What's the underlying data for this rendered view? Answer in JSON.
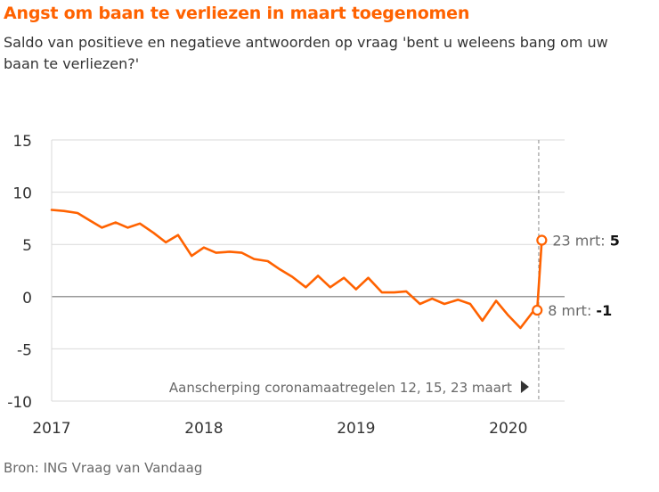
{
  "title": "Angst om baan te verliezen in maart toegenomen",
  "subtitle": "Saldo van positieve en negatieve antwoorden op vraag 'bent u weleens bang om uw baan te verliezen?'",
  "source": "Bron: ING Vraag van Vandaag",
  "colors": {
    "accent": "#ff6200",
    "text": "#333333",
    "muted": "#696969",
    "grid": "#d9d9d9"
  },
  "chart_data": {
    "type": "line",
    "title": "Angst om baan te verliezen in maart toegenomen",
    "xlabel": "",
    "ylabel": "",
    "ylim": [
      -10,
      15
    ],
    "yticks": [
      15,
      10,
      5,
      0,
      -5,
      -10
    ],
    "xlim": [
      2017.0,
      2020.37
    ],
    "xticks": [
      {
        "value": 2017,
        "label": "2017"
      },
      {
        "value": 2018,
        "label": "2018"
      },
      {
        "value": 2019,
        "label": "2019"
      },
      {
        "value": 2020,
        "label": "2020"
      }
    ],
    "grid": "horizontal",
    "series": [
      {
        "x": [
          2017.0,
          2017.08,
          2017.17,
          2017.25,
          2017.33,
          2017.42,
          2017.5,
          2017.58,
          2017.67,
          2017.75,
          2017.83,
          2017.92,
          2018.0,
          2018.08,
          2018.17,
          2018.25,
          2018.33,
          2018.42,
          2018.5,
          2018.58,
          2018.67,
          2018.75,
          2018.83,
          2018.92,
          2019.0,
          2019.08,
          2019.17,
          2019.25,
          2019.33,
          2019.42,
          2019.5,
          2019.58,
          2019.67,
          2019.75,
          2019.83,
          2019.92,
          2020.0,
          2020.08,
          2020.17,
          2020.19,
          2020.22
        ],
        "values": [
          8.3,
          8.2,
          8.0,
          7.3,
          6.6,
          7.1,
          6.6,
          7.0,
          6.1,
          5.2,
          5.9,
          3.9,
          4.7,
          4.2,
          4.3,
          4.2,
          3.6,
          3.4,
          2.6,
          1.9,
          0.9,
          2.0,
          0.9,
          1.8,
          0.7,
          1.8,
          0.4,
          0.4,
          0.5,
          -0.7,
          -0.2,
          -0.7,
          -0.3,
          -0.7,
          -2.3,
          -0.4,
          -1.8,
          -3.0,
          -1.3,
          -1.3,
          5.4
        ]
      }
    ],
    "highlights": [
      {
        "x": 2020.19,
        "y": -1.3,
        "label": "8 mrt: ",
        "value": "-1"
      },
      {
        "x": 2020.22,
        "y": 5.4,
        "label": "23 mrt: ",
        "value": "5"
      }
    ],
    "annotation": {
      "text": "Aanscherping coronamaatregelen 12, 15, 23 maart",
      "x": 2020.2
    }
  }
}
